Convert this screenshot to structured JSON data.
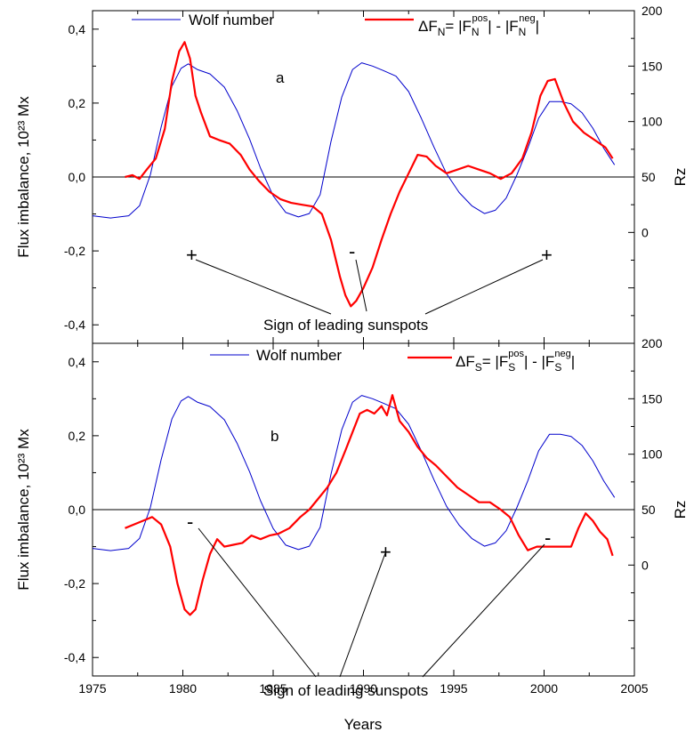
{
  "chart_data": [
    {
      "panel": "a",
      "type": "line",
      "xlabel": "",
      "ylabel": "Flux imbalance, 10²³ Mx",
      "y2label": "Rz",
      "xlim": [
        1975,
        2005
      ],
      "ylim": [
        -0.45,
        0.45
      ],
      "y2lim": [
        -100,
        200
      ],
      "xticks": [
        "1975",
        "1980",
        "1985",
        "1990",
        "1995",
        "2000",
        "2005"
      ],
      "yticks": [
        "-0,4",
        "-0,2",
        "0,0",
        "0,2",
        "0,4"
      ],
      "y2ticks": [
        "0",
        "50",
        "100",
        "150",
        "200"
      ],
      "y2tick_values": [
        0,
        50,
        100,
        150,
        200
      ],
      "grid": false,
      "legend": {
        "placement": "top",
        "wolf_label": "Wolf number",
        "delta_label": "ΔF",
        "delta_sub": "N",
        "eq": "= |F",
        "pos_sup": "pos",
        "mid": "| - |F",
        "neg_sup": "neg",
        "end": "|"
      },
      "annotation": "Sign of leading sunspots",
      "signs": [
        "+",
        "-",
        "+"
      ],
      "series": [
        {
          "name": "Wolf number",
          "color": "#0000cc",
          "axis": "right",
          "x": [
            1975.0,
            1976.0,
            1977.0,
            1977.6,
            1978.2,
            1978.8,
            1979.4,
            1979.9,
            1980.3,
            1980.8,
            1981.5,
            1982.3,
            1983.0,
            1983.7,
            1984.3,
            1985.0,
            1985.7,
            1986.4,
            1987.0,
            1987.6,
            1988.2,
            1988.8,
            1989.4,
            1989.9,
            1990.5,
            1991.1,
            1991.8,
            1992.5,
            1993.2,
            1993.9,
            1994.6,
            1995.3,
            1996.0,
            1996.7,
            1997.3,
            1997.9,
            1998.5,
            1999.1,
            1999.7,
            2000.3,
            2000.9,
            2001.5,
            2002.1,
            2002.7,
            2003.3,
            2003.9
          ],
          "y": [
            15,
            13,
            15,
            24,
            52,
            95,
            132,
            148,
            152,
            147,
            143,
            131,
            110,
            84,
            58,
            33,
            18,
            14,
            17,
            34,
            82,
            122,
            147,
            153,
            150,
            146,
            141,
            127,
            103,
            77,
            53,
            36,
            24,
            17,
            20,
            31,
            52,
            76,
            103,
            118,
            118,
            116,
            108,
            94,
            76,
            61
          ]
        },
        {
          "name": "ΔF N",
          "color": "#ff0000",
          "axis": "left",
          "x": [
            1976.8,
            1977.2,
            1977.6,
            1978.0,
            1978.5,
            1979.0,
            1979.4,
            1979.8,
            1980.1,
            1980.4,
            1980.7,
            1981.0,
            1981.5,
            1982.0,
            1982.6,
            1983.2,
            1983.7,
            1984.2,
            1984.8,
            1985.4,
            1986.0,
            1986.6,
            1987.2,
            1987.7,
            1988.2,
            1988.7,
            1989.0,
            1989.3,
            1989.6,
            1990.0,
            1990.5,
            1991.0,
            1991.5,
            1992.0,
            1992.5,
            1993.0,
            1993.5,
            1994.0,
            1994.6,
            1995.2,
            1995.8,
            1996.4,
            1997.0,
            1997.6,
            1998.2,
            1998.8,
            1999.3,
            1999.8,
            2000.2,
            2000.6,
            2001.1,
            2001.6,
            2002.2,
            2002.8,
            2003.4,
            2003.8
          ],
          "y": [
            0.0,
            0.005,
            -0.005,
            0.02,
            0.05,
            0.13,
            0.26,
            0.34,
            0.365,
            0.32,
            0.22,
            0.175,
            0.11,
            0.1,
            0.09,
            0.06,
            0.02,
            -0.01,
            -0.04,
            -0.06,
            -0.07,
            -0.075,
            -0.08,
            -0.1,
            -0.17,
            -0.27,
            -0.32,
            -0.35,
            -0.335,
            -0.3,
            -0.245,
            -0.17,
            -0.1,
            -0.04,
            0.01,
            0.06,
            0.055,
            0.03,
            0.01,
            0.02,
            0.03,
            0.02,
            0.01,
            -0.005,
            0.01,
            0.05,
            0.12,
            0.22,
            0.26,
            0.265,
            0.2,
            0.15,
            0.12,
            0.1,
            0.08,
            0.05
          ]
        }
      ]
    },
    {
      "panel": "b",
      "type": "line",
      "xlabel": "Years",
      "ylabel": "Flux imbalance, 10²³ Mx",
      "y2label": "Rz",
      "xlim": [
        1975,
        2005
      ],
      "ylim": [
        -0.45,
        0.45
      ],
      "y2lim": [
        -100,
        200
      ],
      "xticks": [
        "1975",
        "1980",
        "1985",
        "1990",
        "1995",
        "2000",
        "2005"
      ],
      "yticks": [
        "-0,4",
        "-0,2",
        "0,0",
        "0,2",
        "0,4"
      ],
      "y2ticks": [
        "0",
        "50",
        "100",
        "150",
        "200"
      ],
      "y2tick_values": [
        0,
        50,
        100,
        150,
        200
      ],
      "grid": false,
      "legend": {
        "placement": "top",
        "wolf_label": "Wolf number",
        "delta_label": "ΔF",
        "delta_sub": "S",
        "eq": "= |F",
        "pos_sup": "pos",
        "mid": "| - |F",
        "neg_sup": "neg",
        "end": "|"
      },
      "annotation": "Sign of leading sunspots",
      "signs": [
        "-",
        "+",
        "-"
      ],
      "series": [
        {
          "name": "Wolf number",
          "color": "#0000cc",
          "axis": "right",
          "x": [
            1975.0,
            1976.0,
            1977.0,
            1977.6,
            1978.2,
            1978.8,
            1979.4,
            1979.9,
            1980.3,
            1980.8,
            1981.5,
            1982.3,
            1983.0,
            1983.7,
            1984.3,
            1985.0,
            1985.7,
            1986.4,
            1987.0,
            1987.6,
            1988.2,
            1988.8,
            1989.4,
            1989.9,
            1990.5,
            1991.1,
            1991.8,
            1992.5,
            1993.2,
            1993.9,
            1994.6,
            1995.3,
            1996.0,
            1996.7,
            1997.3,
            1997.9,
            1998.5,
            1999.1,
            1999.7,
            2000.3,
            2000.9,
            2001.5,
            2002.1,
            2002.7,
            2003.3,
            2003.9
          ],
          "y": [
            15,
            13,
            15,
            24,
            52,
            95,
            132,
            148,
            152,
            147,
            143,
            131,
            110,
            84,
            58,
            33,
            18,
            14,
            17,
            34,
            82,
            122,
            147,
            153,
            150,
            146,
            141,
            127,
            103,
            77,
            53,
            36,
            24,
            17,
            20,
            31,
            52,
            76,
            103,
            118,
            118,
            116,
            108,
            94,
            76,
            61
          ]
        },
        {
          "name": "ΔF S",
          "color": "#ff0000",
          "axis": "left",
          "x": [
            1976.8,
            1977.3,
            1977.8,
            1978.3,
            1978.8,
            1979.3,
            1979.7,
            1980.1,
            1980.4,
            1980.7,
            1981.1,
            1981.5,
            1981.9,
            1982.3,
            1982.8,
            1983.3,
            1983.8,
            1984.3,
            1984.8,
            1985.3,
            1985.9,
            1986.5,
            1987.0,
            1987.5,
            1988.0,
            1988.5,
            1989.0,
            1989.4,
            1989.8,
            1990.2,
            1990.6,
            1991.0,
            1991.3,
            1991.6,
            1992.0,
            1992.5,
            1993.0,
            1993.5,
            1994.0,
            1994.6,
            1995.2,
            1995.8,
            1996.4,
            1997.0,
            1997.6,
            1998.1,
            1998.6,
            1999.1,
            1999.6,
            2000.1,
            2000.6,
            2001.1,
            2001.5,
            2001.9,
            2002.3,
            2002.7,
            2003.1,
            2003.5,
            2003.8
          ],
          "y": [
            -0.05,
            -0.04,
            -0.03,
            -0.02,
            -0.04,
            -0.1,
            -0.2,
            -0.27,
            -0.285,
            -0.27,
            -0.19,
            -0.12,
            -0.08,
            -0.1,
            -0.095,
            -0.09,
            -0.07,
            -0.08,
            -0.07,
            -0.065,
            -0.05,
            -0.02,
            0.0,
            0.03,
            0.06,
            0.1,
            0.16,
            0.21,
            0.26,
            0.27,
            0.26,
            0.28,
            0.255,
            0.31,
            0.24,
            0.21,
            0.17,
            0.14,
            0.12,
            0.09,
            0.06,
            0.04,
            0.02,
            0.02,
            0.0,
            -0.02,
            -0.07,
            -0.11,
            -0.1,
            -0.1,
            -0.1,
            -0.1,
            -0.1,
            -0.05,
            -0.01,
            -0.03,
            -0.06,
            -0.08,
            -0.125
          ]
        }
      ]
    }
  ]
}
